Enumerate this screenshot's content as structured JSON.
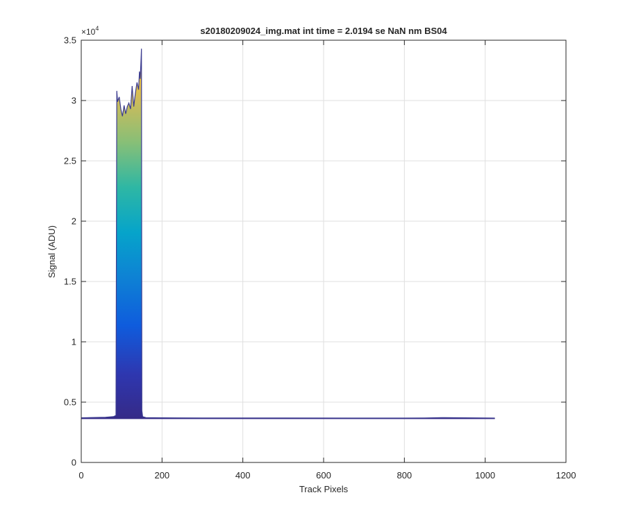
{
  "chart_data": {
    "type": "area",
    "title": "s20180209024_img.mat int time = 2.0194 se  NaN nm BS04",
    "xlabel": "Track Pixels",
    "ylabel": "Signal (ADU)",
    "xlim": [
      0,
      1200
    ],
    "ylim": [
      0,
      35000
    ],
    "xticks": [
      0,
      200,
      400,
      600,
      800,
      1000,
      1200
    ],
    "xtick_labels": [
      "0",
      "200",
      "400",
      "600",
      "800",
      "1000",
      "1200"
    ],
    "yticks": [
      0,
      5000,
      10000,
      15000,
      20000,
      25000,
      30000,
      35000
    ],
    "ytick_labels": [
      "0",
      "0.5",
      "1",
      "1.5",
      "2",
      "2.5",
      "3",
      "3.5"
    ],
    "y_exponent_label": "×10",
    "y_exponent_power": "4",
    "grid": true,
    "colormap": "parula",
    "colors": {
      "axis": "#262626",
      "grid": "#dfdfdf",
      "baseline": "#3b3b8f",
      "parula_low": "#352a87",
      "parula_high": "#f9fb0e"
    },
    "series": [
      {
        "x": [
          0,
          60,
          80,
          86,
          88,
          90,
          94,
          98,
          102,
          106,
          110,
          114,
          118,
          122,
          126,
          130,
          134,
          138,
          142,
          144,
          146,
          148,
          149,
          150,
          152,
          160,
          200,
          300,
          500,
          700,
          800,
          850,
          900,
          950,
          1000,
          1024
        ],
        "values": [
          3700,
          3750,
          3800,
          3900,
          30800,
          29900,
          30300,
          29300,
          28700,
          29600,
          28900,
          29500,
          29800,
          29300,
          31200,
          29500,
          30600,
          31500,
          30900,
          32400,
          31800,
          33400,
          34300,
          4300,
          3800,
          3720,
          3700,
          3690,
          3690,
          3680,
          3680,
          3690,
          3720,
          3700,
          3690,
          3680
        ]
      }
    ]
  }
}
